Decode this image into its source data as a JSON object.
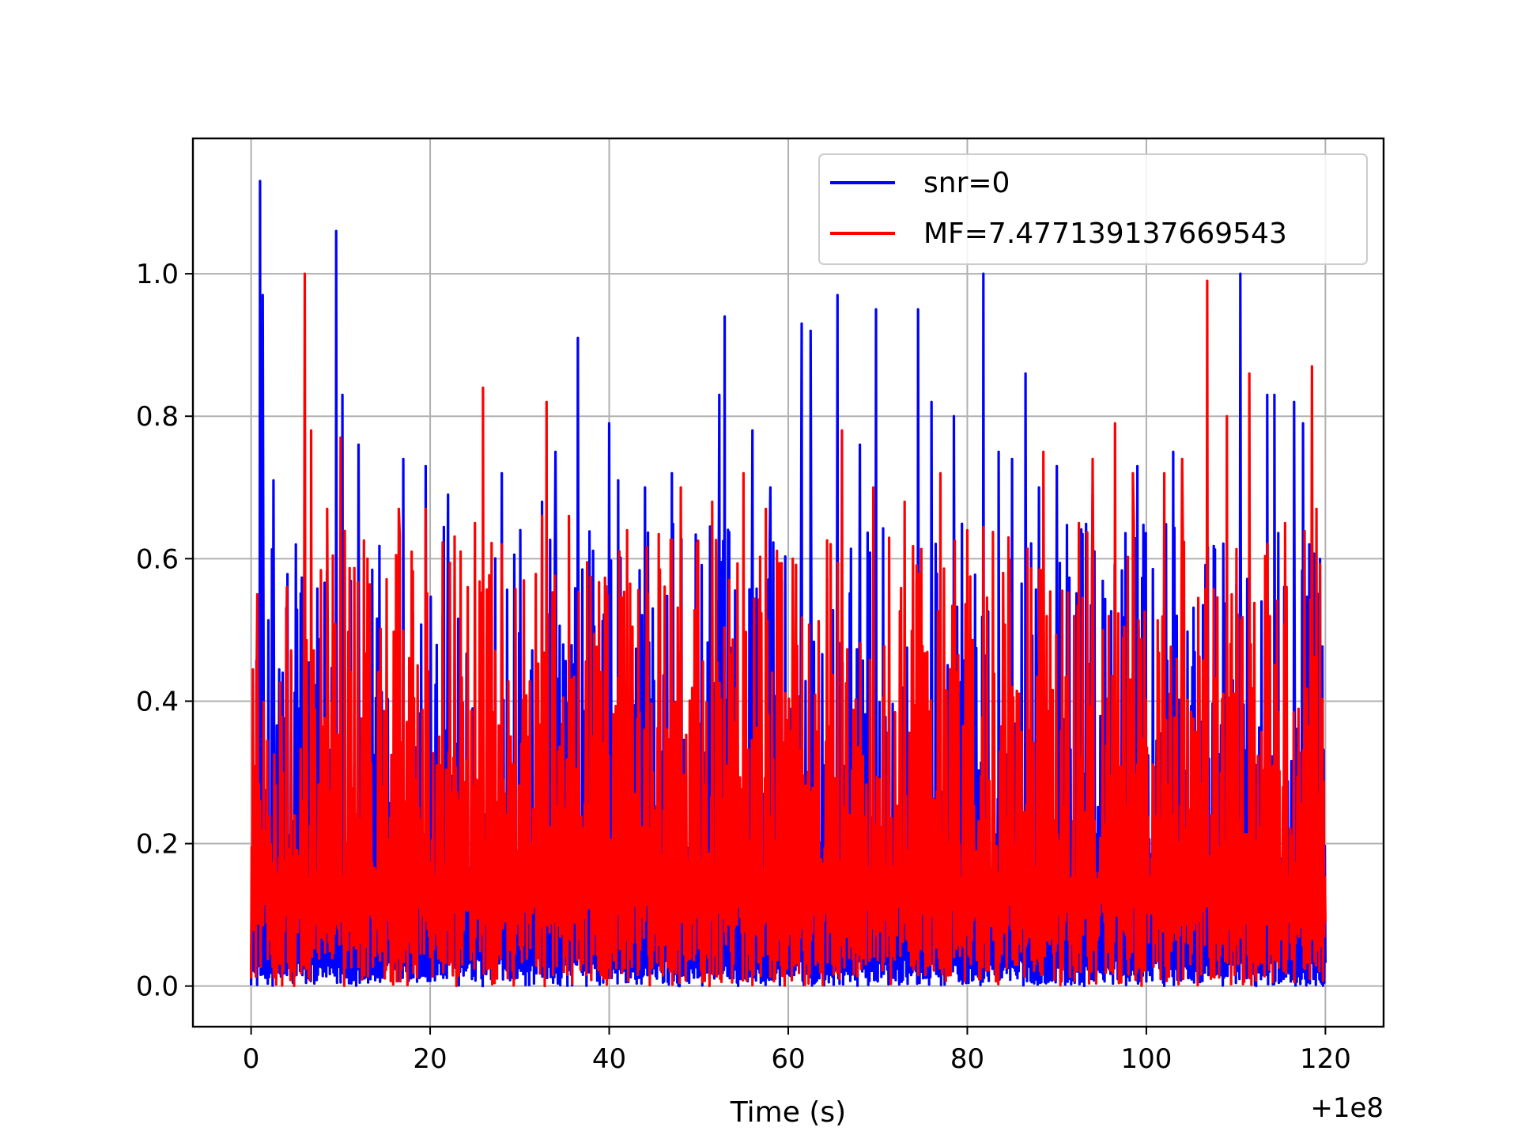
{
  "chart_data": {
    "type": "line",
    "title": "",
    "xlabel": "Time (s)",
    "ylabel": "",
    "x_offset_label": "+1e8",
    "x_offset": 100000000,
    "xlim": [
      -6.5,
      126.5
    ],
    "ylim": [
      -0.057,
      1.19
    ],
    "x_range": [
      0,
      120
    ],
    "x_ticks": [
      0,
      20,
      40,
      60,
      80,
      100,
      120
    ],
    "x_tick_labels": [
      "0",
      "20",
      "40",
      "60",
      "80",
      "100",
      "120"
    ],
    "y_ticks": [
      0.0,
      0.2,
      0.4,
      0.6,
      0.8,
      1.0
    ],
    "y_tick_labels": [
      "0.0",
      "0.2",
      "0.4",
      "0.6",
      "0.8",
      "1.0"
    ],
    "grid": true,
    "legend_position": "top-right",
    "series": [
      {
        "name": "snr=0",
        "color": "#0000ff",
        "baseline": [
          0.0,
          0.04
        ],
        "peaks": [
          [
            1.0,
            1.13
          ],
          [
            1.3,
            0.97
          ],
          [
            2.5,
            0.71
          ],
          [
            5.0,
            0.62
          ],
          [
            9.5,
            1.06
          ],
          [
            10.2,
            0.83
          ],
          [
            12.0,
            0.76
          ],
          [
            17.0,
            0.74
          ],
          [
            19.5,
            0.73
          ],
          [
            22.0,
            0.69
          ],
          [
            28.0,
            0.72
          ],
          [
            32.5,
            0.68
          ],
          [
            34.0,
            0.75
          ],
          [
            36.5,
            0.91
          ],
          [
            40.0,
            0.79
          ],
          [
            41.0,
            0.71
          ],
          [
            44.0,
            0.7
          ],
          [
            47.0,
            0.72
          ],
          [
            52.3,
            0.83
          ],
          [
            52.9,
            0.94
          ],
          [
            56.0,
            0.78
          ],
          [
            58.0,
            0.7
          ],
          [
            61.5,
            0.93
          ],
          [
            62.5,
            0.92
          ],
          [
            65.5,
            0.97
          ],
          [
            68.0,
            0.76
          ],
          [
            69.8,
            0.95
          ],
          [
            74.5,
            0.95
          ],
          [
            76.0,
            0.82
          ],
          [
            78.5,
            0.8
          ],
          [
            81.8,
            1.0
          ],
          [
            83.5,
            0.75
          ],
          [
            85.0,
            0.74
          ],
          [
            86.5,
            0.86
          ],
          [
            88.0,
            0.7
          ],
          [
            90.0,
            0.73
          ],
          [
            94.0,
            0.69
          ],
          [
            99.0,
            0.73
          ],
          [
            103.0,
            0.75
          ],
          [
            110.5,
            1.0
          ],
          [
            113.5,
            0.83
          ],
          [
            114.3,
            0.83
          ],
          [
            116.5,
            0.82
          ],
          [
            117.5,
            0.79
          ]
        ]
      },
      {
        "name": "MF=7.477139137669543",
        "color": "#ff0000",
        "baseline": [
          0.0,
          0.12
        ],
        "peaks": [
          [
            0.7,
            0.55
          ],
          [
            4.0,
            0.56
          ],
          [
            6.0,
            1.0
          ],
          [
            6.7,
            0.78
          ],
          [
            8.5,
            0.67
          ],
          [
            10.0,
            0.77
          ],
          [
            13.0,
            0.6
          ],
          [
            16.5,
            0.67
          ],
          [
            19.5,
            0.67
          ],
          [
            25.0,
            0.65
          ],
          [
            25.9,
            0.84
          ],
          [
            28.0,
            0.62
          ],
          [
            32.5,
            0.66
          ],
          [
            33.0,
            0.82
          ],
          [
            35.5,
            0.66
          ],
          [
            42.0,
            0.64
          ],
          [
            48.0,
            0.7
          ],
          [
            51.5,
            0.68
          ],
          [
            55.0,
            0.72
          ],
          [
            57.5,
            0.67
          ],
          [
            60.5,
            0.6
          ],
          [
            66.0,
            0.78
          ],
          [
            69.5,
            0.7
          ],
          [
            73.0,
            0.68
          ],
          [
            77.0,
            0.72
          ],
          [
            80.0,
            0.64
          ],
          [
            84.0,
            0.58
          ],
          [
            88.5,
            0.75
          ],
          [
            94.0,
            0.74
          ],
          [
            96.5,
            0.79
          ],
          [
            98.5,
            0.72
          ],
          [
            102.0,
            0.72
          ],
          [
            104.0,
            0.74
          ],
          [
            106.8,
            0.99
          ],
          [
            109.0,
            0.8
          ],
          [
            111.5,
            0.86
          ],
          [
            115.5,
            0.65
          ],
          [
            118.5,
            0.87
          ],
          [
            119.0,
            0.67
          ]
        ]
      }
    ]
  }
}
